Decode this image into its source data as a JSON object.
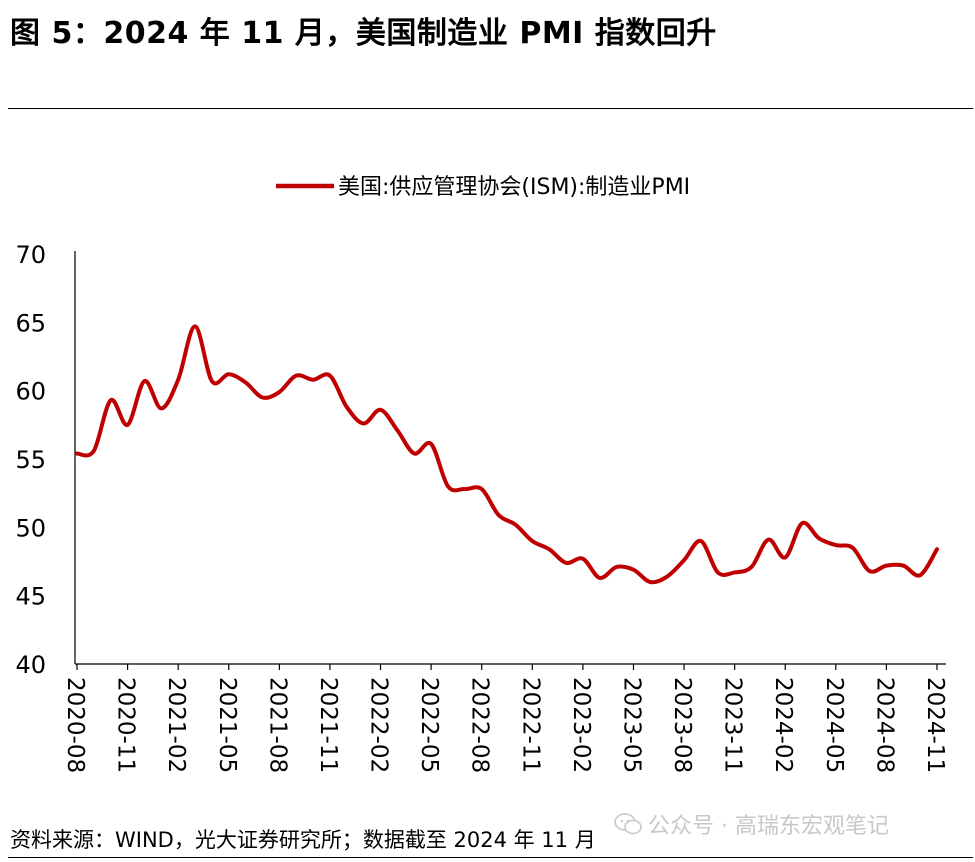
{
  "figure": {
    "title": "图 5：2024 年 11 月，美国制造业 PMI 指数回升",
    "source_note": "资料来源：WIND，光大证券研究所；数据截至 2024 年 11 月",
    "watermark": "公众号 · 高瑞东宏观笔记",
    "watermark_icon": "wechat-icon"
  },
  "colors": {
    "series_line": "#c00000",
    "axis": "#000000"
  },
  "chart_data": {
    "type": "line",
    "title": "",
    "xlabel": "",
    "ylabel": "",
    "ylim": [
      40,
      70
    ],
    "yticks": [
      "40",
      "45",
      "50",
      "55",
      "60",
      "65",
      "70"
    ],
    "grid": false,
    "legend_position": "top-center",
    "tick_labels": [
      "2020-08",
      "2020-11",
      "2021-02",
      "2021-05",
      "2021-08",
      "2021-11",
      "2022-02",
      "2022-05",
      "2022-08",
      "2022-11",
      "2023-02",
      "2023-05",
      "2023-08",
      "2023-11",
      "2024-02",
      "2024-05",
      "2024-08",
      "2024-11"
    ],
    "x": [
      "2020-08",
      "2020-09",
      "2020-10",
      "2020-11",
      "2020-12",
      "2021-01",
      "2021-02",
      "2021-03",
      "2021-04",
      "2021-05",
      "2021-06",
      "2021-07",
      "2021-08",
      "2021-09",
      "2021-10",
      "2021-11",
      "2021-12",
      "2022-01",
      "2022-02",
      "2022-03",
      "2022-04",
      "2022-05",
      "2022-06",
      "2022-07",
      "2022-08",
      "2022-09",
      "2022-10",
      "2022-11",
      "2022-12",
      "2023-01",
      "2023-02",
      "2023-03",
      "2023-04",
      "2023-05",
      "2023-06",
      "2023-07",
      "2023-08",
      "2023-09",
      "2023-10",
      "2023-11",
      "2023-12",
      "2024-01",
      "2024-02",
      "2024-03",
      "2024-04",
      "2024-05",
      "2024-06",
      "2024-07",
      "2024-08",
      "2024-09",
      "2024-10",
      "2024-11"
    ],
    "series": [
      {
        "name": "美国:供应管理协会(ISM):制造业PMI",
        "values": [
          55.4,
          55.6,
          59.3,
          57.5,
          60.7,
          58.7,
          60.8,
          64.7,
          60.7,
          61.2,
          60.6,
          59.5,
          59.9,
          61.1,
          60.8,
          61.1,
          58.8,
          57.6,
          58.6,
          57.1,
          55.4,
          56.1,
          53.0,
          52.8,
          52.8,
          50.9,
          50.2,
          49.0,
          48.4,
          47.4,
          47.7,
          46.3,
          47.1,
          46.9,
          46.0,
          46.4,
          47.6,
          49.0,
          46.7,
          46.7,
          47.1,
          49.1,
          47.8,
          50.3,
          49.2,
          48.7,
          48.5,
          46.8,
          47.2,
          47.2,
          46.5,
          48.4
        ]
      }
    ]
  }
}
